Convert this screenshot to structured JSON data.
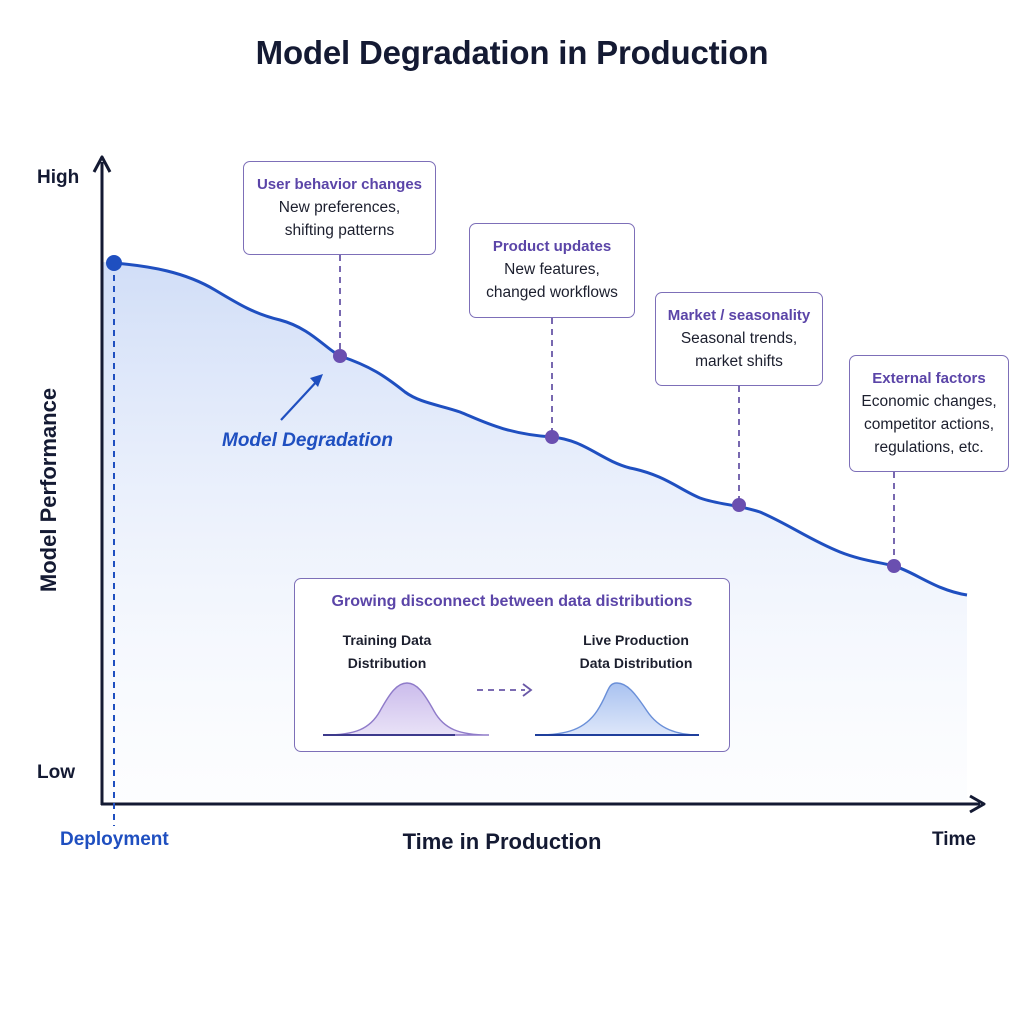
{
  "title": "Model Degradation in Production",
  "axes": {
    "y_label": "Model Performance",
    "y_high": "High",
    "y_low": "Low",
    "x_label": "Time in Production",
    "x_end": "Time",
    "start_label": "Deployment"
  },
  "curve_label": "Model Degradation",
  "callouts": [
    {
      "title": "User behavior changes",
      "lines": [
        "New preferences,",
        "shifting patterns"
      ]
    },
    {
      "title": "Product updates",
      "lines": [
        "New features,",
        "changed workflows"
      ]
    },
    {
      "title": "Market / seasonality",
      "lines": [
        "Seasonal trends,",
        "market shifts"
      ]
    },
    {
      "title": "External factors",
      "lines": [
        "Economic changes,",
        "competitor actions,",
        "regulations, etc."
      ]
    }
  ],
  "distribution": {
    "title": "Growing disconnect between data distributions",
    "training": [
      "Training Data",
      "Distribution"
    ],
    "live": [
      "Live Production",
      "Data Distribution"
    ]
  },
  "colors": {
    "curve": "#1f4fc0",
    "marker": "#6a4fb0",
    "callout_border": "#7d6fb8",
    "callout_title": "#5b45a8",
    "axis": "#141a33",
    "training_fill": "#d9cff0",
    "live_fill": "#b9cdf3"
  },
  "icons": {
    "arrow": "diagonal-arrow-icon",
    "dist_arrow": "dashed-arrow-icon"
  }
}
